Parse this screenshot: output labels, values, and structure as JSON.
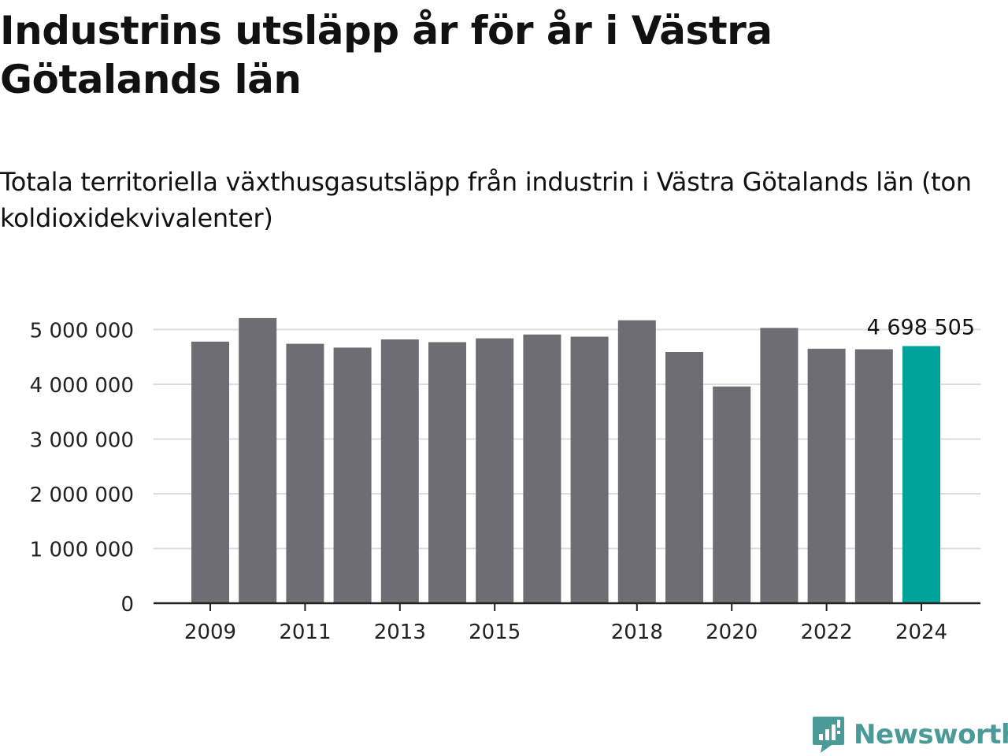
{
  "title": "Industrins utsläpp år för år i Västra Götalands län",
  "subtitle": "Totala territoriella växthusgasutsläpp från industrin i Västra Götalands län (ton koldioxidekvivalenter)",
  "brand": {
    "name": "Newsworthy",
    "icon": "newsworthy-logo-icon",
    "color": "#4a9a98"
  },
  "colors": {
    "bar": "#6e6d73",
    "highlight": "#00a39a",
    "grid": "#dddddd",
    "axis": "#222222",
    "text": "#222222"
  },
  "chart_data": {
    "type": "bar",
    "categories": [
      "2009",
      "2010",
      "2011",
      "2012",
      "2013",
      "2014",
      "2015",
      "2016",
      "2017",
      "2018",
      "2019",
      "2020",
      "2021",
      "2022",
      "2023",
      "2024"
    ],
    "values": [
      4780000,
      5210000,
      4740000,
      4670000,
      4820000,
      4770000,
      4840000,
      4910000,
      4870000,
      5170000,
      4590000,
      3960000,
      5030000,
      4650000,
      4640000,
      4698505
    ],
    "x_tick_labels": [
      "2009",
      "",
      "2011",
      "",
      "2013",
      "",
      "2015",
      "",
      "",
      "2018",
      "",
      "2020",
      "",
      "2022",
      "",
      "2024"
    ],
    "y_ticks": [
      {
        "value": 0,
        "label": "0"
      },
      {
        "value": 1000000,
        "label": "1 000 000"
      },
      {
        "value": 2000000,
        "label": "2 000 000"
      },
      {
        "value": 3000000,
        "label": "3 000 000"
      },
      {
        "value": 4000000,
        "label": "4 000 000"
      },
      {
        "value": 5000000,
        "label": "5 000 000"
      }
    ],
    "ylim": [
      0,
      5500000
    ],
    "highlight_index": 15,
    "annotation": {
      "index": 15,
      "label": "4 698 505"
    },
    "grid": true,
    "legend": "none"
  }
}
